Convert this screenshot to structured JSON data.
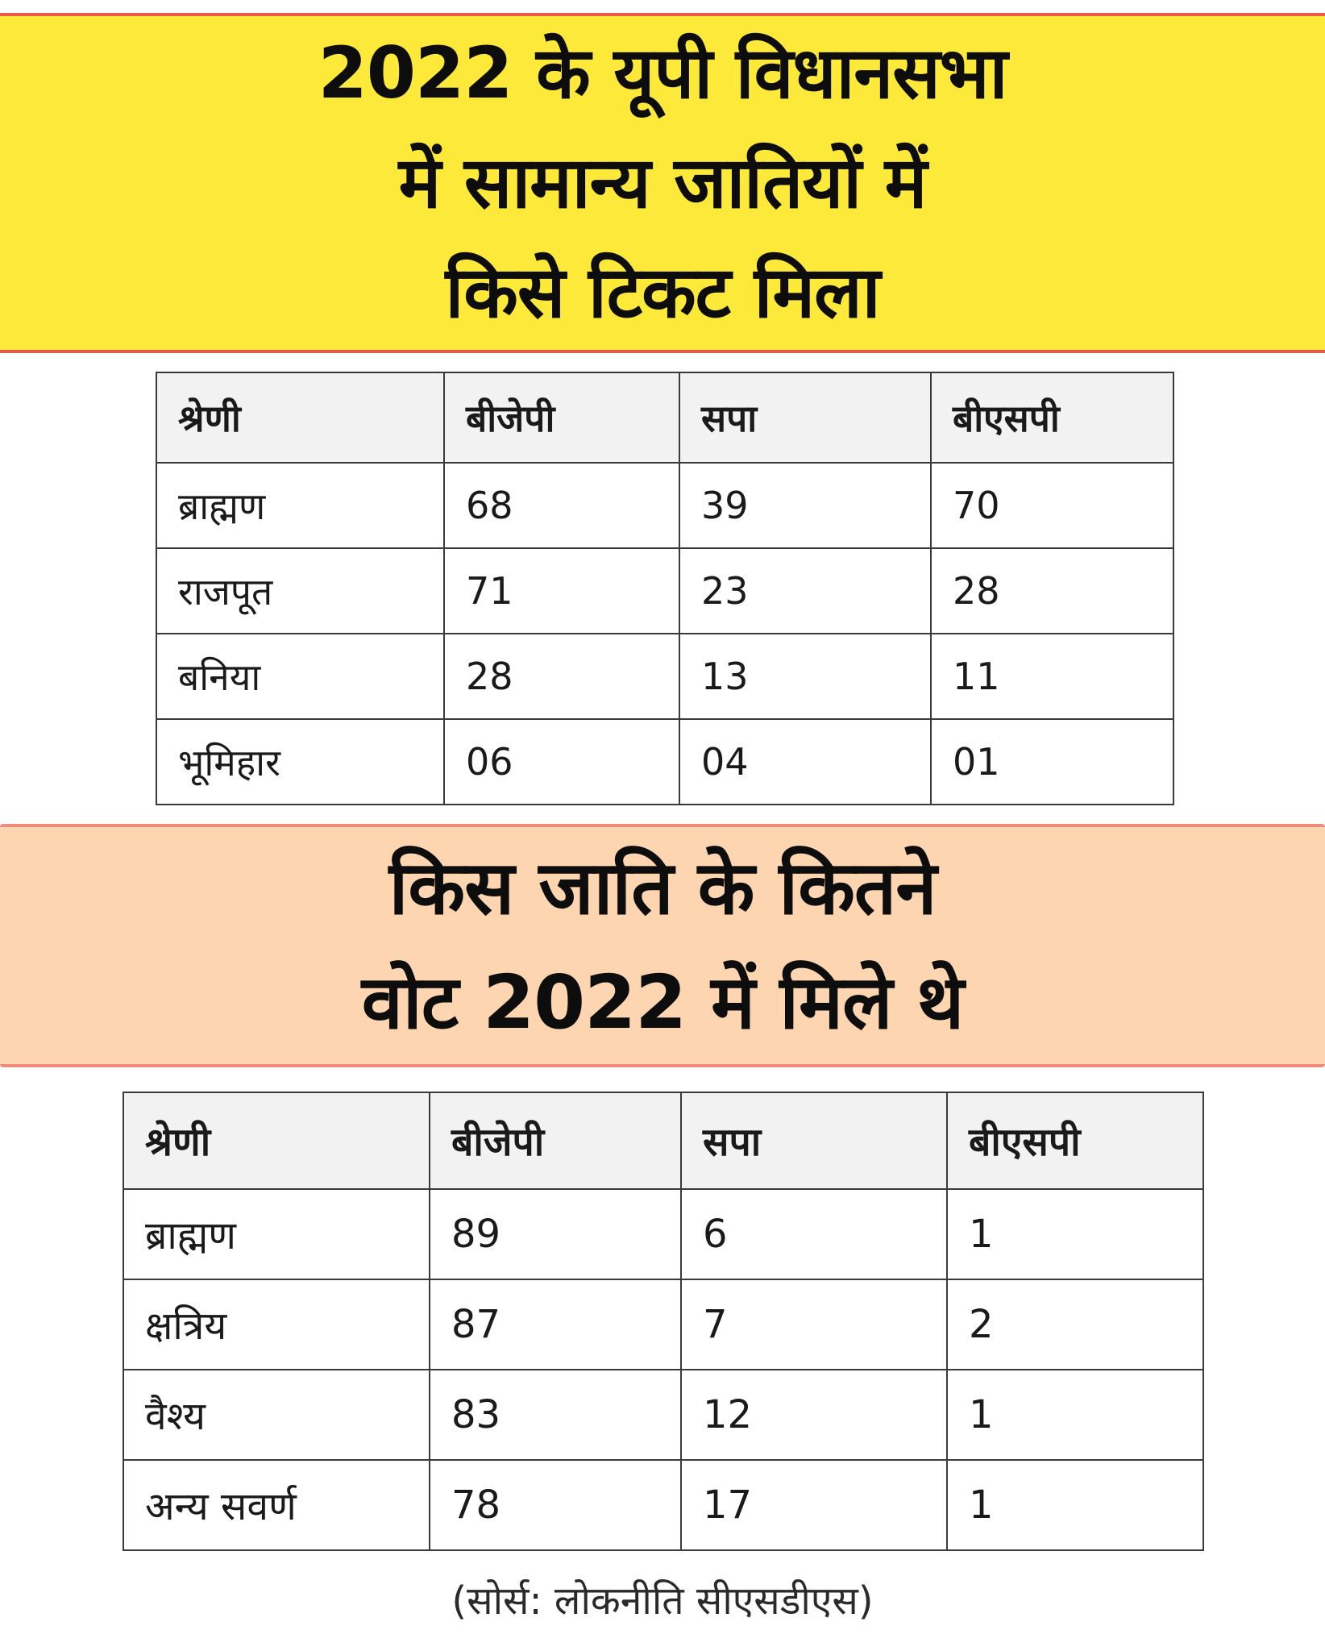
{
  "section1": {
    "title_lines": [
      "2022 के यूपी विधानसभा",
      "में सामान्य जातियों में",
      "किसे टिकट मिला"
    ],
    "headers": [
      "श्रेणी",
      "बीजेपी",
      "सपा",
      "बीएसपी"
    ],
    "rows": [
      [
        "ब्राह्मण",
        "68",
        "39",
        "70"
      ],
      [
        "राजपूत",
        "71",
        "23",
        "28"
      ],
      [
        "बनिया",
        "28",
        "13",
        "11"
      ],
      [
        "भूमिहार",
        "06",
        "04",
        "01"
      ]
    ]
  },
  "section2": {
    "title_lines": [
      "किस जाति के कितने",
      "वोट 2022 में मिले थे"
    ],
    "headers": [
      "श्रेणी",
      "बीजेपी",
      "सपा",
      "बीएसपी"
    ],
    "rows": [
      [
        "ब्राह्मण",
        "89",
        "6",
        "1"
      ],
      [
        "क्षत्रिय",
        "87",
        "7",
        "2"
      ],
      [
        "वैश्य",
        "83",
        "12",
        "1"
      ],
      [
        "अन्य सवर्ण",
        "78",
        "17",
        "1"
      ]
    ]
  },
  "source": "(सोर्स: लोकनीति सीएसडीएस)",
  "colors": {
    "banner1_bg": "#fde93a",
    "banner1_border": "#ec5a4e",
    "banner2_bg": "#fdd5b0",
    "banner2_border": "#f08a7c",
    "header_bg": "#f2f2f2"
  }
}
